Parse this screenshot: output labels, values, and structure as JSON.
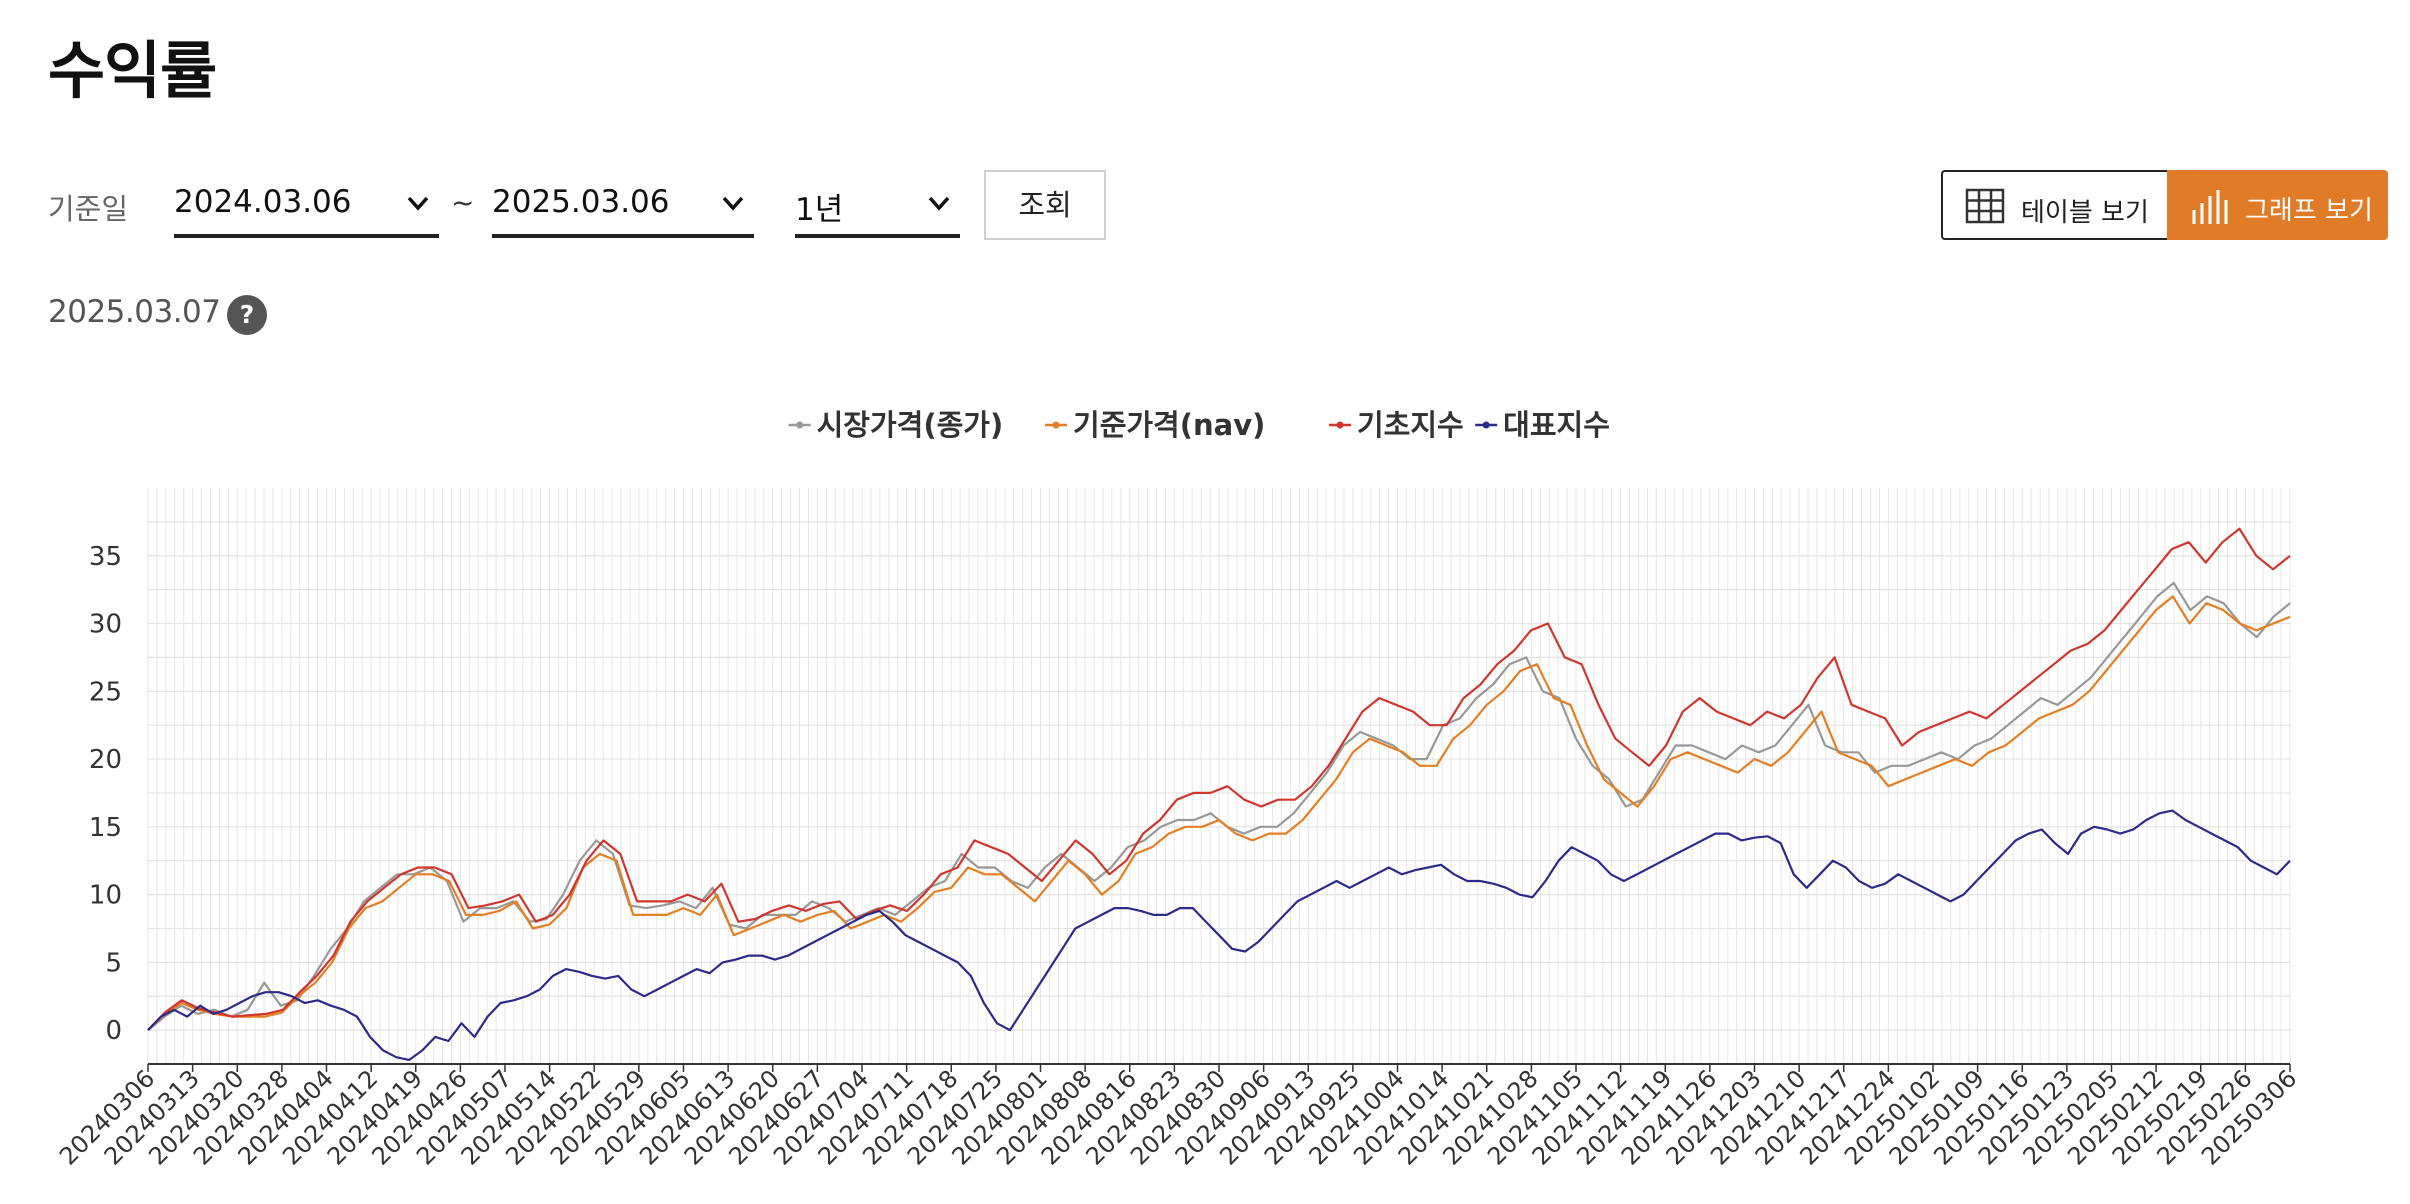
{
  "page": {
    "title": "수익률"
  },
  "filters": {
    "date_label": "기준일",
    "start_date": "2024.03.06",
    "separator": "~",
    "end_date": "2025.03.06",
    "period": "1년",
    "search_label": "조회"
  },
  "view_toggle": {
    "table_label": "테이블 보기",
    "graph_label": "그래프 보기",
    "active": "graph",
    "active_color": "#e07b27"
  },
  "as_of": {
    "date": "2025.03.07",
    "help_label": "?"
  },
  "chart_data": {
    "type": "line",
    "title": "",
    "xlabel": "",
    "ylabel": "",
    "ylim": [
      -2.5,
      40
    ],
    "yticks": [
      0,
      5,
      10,
      15,
      20,
      25,
      30,
      35
    ],
    "grid": true,
    "legend_position": "top",
    "x_tick_labels": [
      "20240306",
      "20240313",
      "20240320",
      "20240328",
      "20240404",
      "20240412",
      "20240419",
      "20240426",
      "20240507",
      "20240514",
      "20240522",
      "20240529",
      "20240605",
      "20240613",
      "20240620",
      "20240627",
      "20240704",
      "20240711",
      "20240718",
      "20240725",
      "20240801",
      "20240808",
      "20240816",
      "20240823",
      "20240830",
      "20240906",
      "20240913",
      "20240925",
      "20241004",
      "20241014",
      "20241021",
      "20241028",
      "20241105",
      "20241112",
      "20241119",
      "20241126",
      "20241203",
      "20241210",
      "20241217",
      "20241224",
      "20250102",
      "20250109",
      "20250116",
      "20250123",
      "20250205",
      "20250212",
      "20250219",
      "20250226",
      "20250306"
    ],
    "series": [
      {
        "name": "시장가격(종가)",
        "color": "#999999",
        "values": [
          0,
          1,
          1.8,
          1.2,
          1.5,
          1,
          1.5,
          3.5,
          1.8,
          2.2,
          4,
          6,
          7.5,
          9.5,
          10.5,
          11.5,
          11.5,
          12,
          11,
          8,
          9,
          9,
          9.5,
          8,
          8.2,
          10,
          12.5,
          14,
          13,
          9.2,
          9,
          9.2,
          9.5,
          9,
          10.5,
          7.8,
          7.5,
          8.5,
          8.5,
          8.5,
          9.5,
          9,
          8,
          8.5,
          9,
          8.5,
          9.5,
          10.5,
          11,
          13,
          12,
          12,
          11,
          10.5,
          12,
          13,
          12,
          11,
          12,
          13.5,
          14,
          15,
          15.5,
          15.5,
          16,
          15,
          14.5,
          15,
          15,
          16,
          17.5,
          19,
          21,
          22,
          21.5,
          21,
          20,
          20,
          22.5,
          23,
          24.5,
          25.5,
          27,
          27.5,
          25,
          24.5,
          21.5,
          19.5,
          18.5,
          16.5,
          17,
          19,
          21,
          21,
          20.5,
          20,
          21,
          20.5,
          21,
          22.5,
          24,
          21,
          20.5,
          20.5,
          19,
          19.5,
          19.5,
          20,
          20.5,
          20,
          21,
          21.5,
          22.5,
          23.5,
          24.5,
          24,
          25,
          26,
          27.5,
          29,
          30.5,
          32,
          33,
          31,
          32,
          31.5,
          30,
          29,
          30.5,
          31.5
        ]
      },
      {
        "name": "기준가격(nav)",
        "color": "#e67e22",
        "values": [
          0,
          1.2,
          2,
          1.5,
          1.2,
          1,
          1,
          1,
          1.3,
          2.5,
          3.5,
          5,
          7.5,
          9,
          9.5,
          10.5,
          11.5,
          11.5,
          11,
          8.5,
          8.5,
          8.8,
          9.5,
          7.5,
          7.8,
          9,
          12,
          13,
          12.5,
          8.5,
          8.5,
          8.5,
          9,
          8.5,
          10,
          7,
          7.5,
          8,
          8.5,
          8,
          8.5,
          8.8,
          7.5,
          8,
          8.5,
          8,
          9,
          10.2,
          10.5,
          12,
          11.5,
          11.5,
          10.5,
          9.5,
          11,
          12.5,
          11.5,
          10,
          11,
          13,
          13.5,
          14.5,
          15,
          15,
          15.5,
          14.5,
          14,
          14.5,
          14.5,
          15.5,
          17,
          18.5,
          20.5,
          21.5,
          21,
          20.5,
          19.5,
          19.5,
          21.5,
          22.5,
          24,
          25,
          26.5,
          27,
          24.5,
          24,
          21,
          18.5,
          17.5,
          16.5,
          18,
          20,
          20.5,
          20,
          19.5,
          19,
          20,
          19.5,
          20.5,
          22,
          23.5,
          20.5,
          20,
          19.5,
          18,
          18.5,
          19,
          19.5,
          20,
          19.5,
          20.5,
          21,
          22,
          23,
          23.5,
          24,
          25,
          26.5,
          28,
          29.5,
          31,
          32,
          30,
          31.5,
          31,
          30,
          29.5,
          30,
          30.5
        ]
      },
      {
        "name": "기초지수",
        "color": "#d0362e",
        "values": [
          0,
          1.3,
          2.2,
          1.6,
          1.3,
          1,
          1.1,
          1.2,
          1.5,
          2.8,
          4,
          5.5,
          8,
          9.5,
          10.5,
          11.5,
          12,
          12,
          11.5,
          9,
          9.2,
          9.5,
          10,
          8,
          8.5,
          10,
          12.5,
          14,
          13,
          9.5,
          9.5,
          9.5,
          10,
          9.5,
          10.8,
          8,
          8.2,
          8.8,
          9.2,
          8.8,
          9.3,
          9.5,
          8.2,
          8.8,
          9.2,
          8.8,
          10,
          11.5,
          12,
          14,
          13.5,
          13,
          12,
          11,
          12.5,
          14,
          13,
          11.5,
          12.5,
          14.5,
          15.5,
          17,
          17.5,
          17.5,
          18,
          17,
          16.5,
          17,
          17,
          18,
          19.5,
          21.5,
          23.5,
          24.5,
          24,
          23.5,
          22.5,
          22.5,
          24.5,
          25.5,
          27,
          28,
          29.5,
          30,
          27.5,
          27,
          24,
          21.5,
          20.5,
          19.5,
          21,
          23.5,
          24.5,
          23.5,
          23,
          22.5,
          23.5,
          23,
          24,
          26,
          27.5,
          24,
          23.5,
          23,
          21,
          22,
          22.5,
          23,
          23.5,
          23,
          24,
          25,
          26,
          27,
          28,
          28.5,
          29.5,
          31,
          32.5,
          34,
          35.5,
          36,
          34.5,
          36,
          37,
          35,
          34,
          35
        ]
      },
      {
        "name": "대표지수",
        "color": "#2e2a8c",
        "values": [
          0,
          1,
          1.5,
          1,
          1.8,
          1.2,
          1.5,
          2,
          2.5,
          2.8,
          2.8,
          2.5,
          2,
          2.2,
          1.8,
          1.5,
          1,
          -0.5,
          -1.5,
          -2,
          -2.2,
          -1.5,
          -0.5,
          -0.8,
          0.5,
          -0.5,
          1,
          2,
          2.2,
          2.5,
          3,
          4,
          4.5,
          4.3,
          4,
          3.8,
          4,
          3,
          2.5,
          3,
          3.5,
          4,
          4.5,
          4.2,
          5,
          5.2,
          5.5,
          5.5,
          5.2,
          5.5,
          6,
          6.5,
          7,
          7.5,
          8,
          8.5,
          8.8,
          8,
          7,
          6.5,
          6,
          5.5,
          5,
          4,
          2,
          0.5,
          0,
          1.5,
          3,
          4.5,
          6,
          7.5,
          8,
          8.5,
          9,
          9,
          8.8,
          8.5,
          8.5,
          9,
          9,
          8,
          7,
          6,
          5.8,
          6.5,
          7.5,
          8.5,
          9.5,
          10,
          10.5,
          11,
          10.5,
          11,
          11.5,
          12,
          11.5,
          11.8,
          12,
          12.2,
          11.5,
          11,
          11,
          10.8,
          10.5,
          10,
          9.8,
          11,
          12.5,
          13.5,
          13,
          12.5,
          11.5,
          11,
          11.5,
          12,
          12.5,
          13,
          13.5,
          14,
          14.5,
          14.5,
          14,
          14.2,
          14.3,
          13.8,
          11.5,
          10.5,
          11.5,
          12.5,
          12,
          11,
          10.5,
          10.8,
          11.5,
          11,
          10.5,
          10,
          9.5,
          10,
          11,
          12,
          13,
          14,
          14.5,
          14.8,
          13.8,
          13,
          14.5,
          15,
          14.8,
          14.5,
          14.8,
          15.5,
          16,
          16.2,
          15.5,
          15,
          14.5,
          14,
          13.5,
          12.5,
          12,
          11.5,
          12.5
        ]
      }
    ]
  }
}
